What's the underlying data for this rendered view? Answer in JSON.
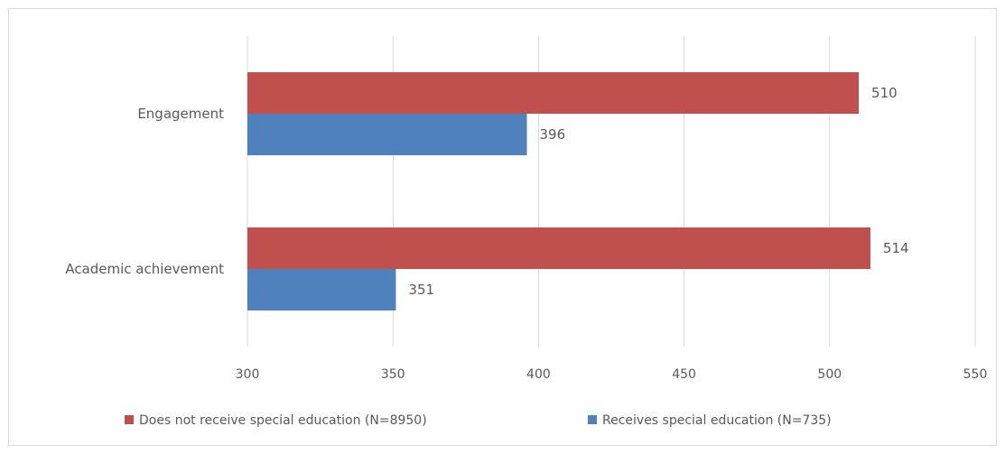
{
  "chart_data": {
    "type": "bar",
    "orientation": "horizontal",
    "categories": [
      "Engagement",
      "Academic achievement"
    ],
    "series": [
      {
        "name": "Does not receive special education (N=8950)",
        "values": [
          510,
          514
        ],
        "color": "#c0504d"
      },
      {
        "name": "Receives special education (N=735)",
        "values": [
          396,
          351
        ],
        "color": "#4f81bd"
      }
    ],
    "xlim": [
      300,
      550
    ],
    "xticks": [
      "300",
      "350",
      "400",
      "450",
      "500",
      "550"
    ],
    "title": "",
    "xlabel": "",
    "ylabel": "",
    "grid": "vertical",
    "legend_position": "bottom",
    "data_labels": true
  }
}
